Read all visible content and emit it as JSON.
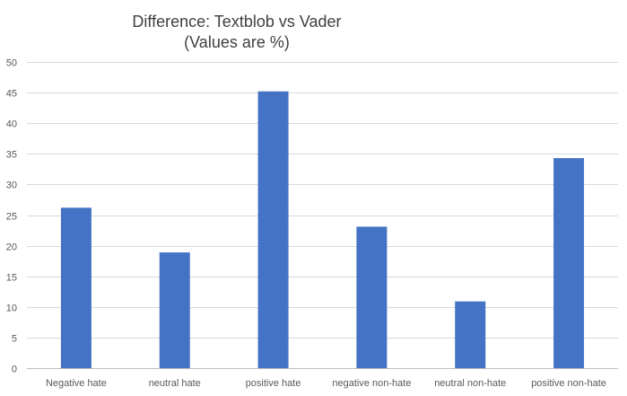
{
  "chart_data": {
    "type": "bar",
    "title": "Difference: Textblob vs Vader",
    "subtitle": "(Values are %)",
    "categories": [
      "Negative hate",
      "neutral hate",
      "positive hate",
      "negative non-hate",
      "neutral non-hate",
      "positive non-hate"
    ],
    "series": [
      {
        "values": [
          26.2,
          18.9,
          45.2,
          23.1,
          10.9,
          34.3
        ]
      }
    ],
    "yticks": [
      "0",
      "5",
      "10",
      "15",
      "20",
      "25",
      "30",
      "35",
      "40",
      "45",
      "50"
    ],
    "ylim": [
      0,
      50
    ],
    "grid": true,
    "legend": "none",
    "colors": {
      "bar": "#4472c4",
      "grid": "#d9d9d9",
      "text": "#595959",
      "title": "#404040"
    }
  }
}
